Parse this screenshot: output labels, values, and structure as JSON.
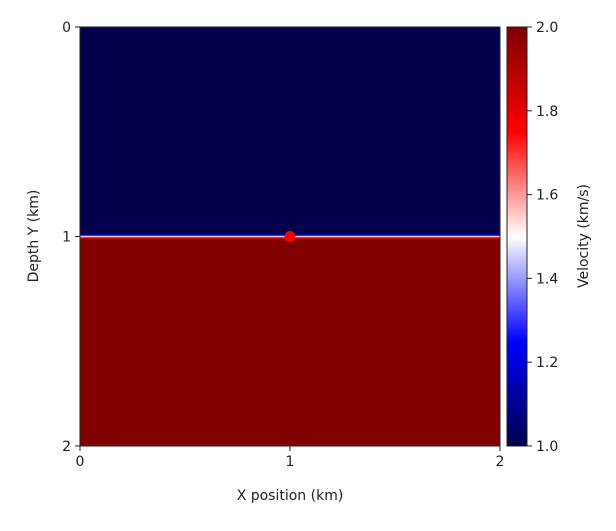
{
  "chart_data": {
    "type": "heatmap",
    "title": "",
    "xlabel": "X position (km)",
    "ylabel": "Depth Y (km)",
    "xlim": [
      0,
      2
    ],
    "ylim": [
      2,
      0
    ],
    "xticks": [
      "0",
      "1",
      "2"
    ],
    "yticks": [
      "0",
      "1",
      "2"
    ],
    "y_inverted": true,
    "grid": false,
    "colormap": "seismic",
    "colormap_stops": [
      "#00004c",
      "#0000ff",
      "#ffffff",
      "#ff0000",
      "#800000"
    ],
    "layers": [
      {
        "depth_from": 0,
        "depth_to": 1,
        "velocity": 1.0
      },
      {
        "depth_from": 1,
        "depth_to": 2,
        "velocity": 2.0
      }
    ],
    "points": [
      {
        "x": 1,
        "y": 1,
        "color": "#ff0000"
      }
    ],
    "colorbar": {
      "label": "Velocity (km/s)",
      "range": [
        1.0,
        2.0
      ],
      "ticks": [
        "1.0",
        "1.2",
        "1.4",
        "1.6",
        "1.8",
        "2.0"
      ],
      "placement": "right"
    }
  }
}
